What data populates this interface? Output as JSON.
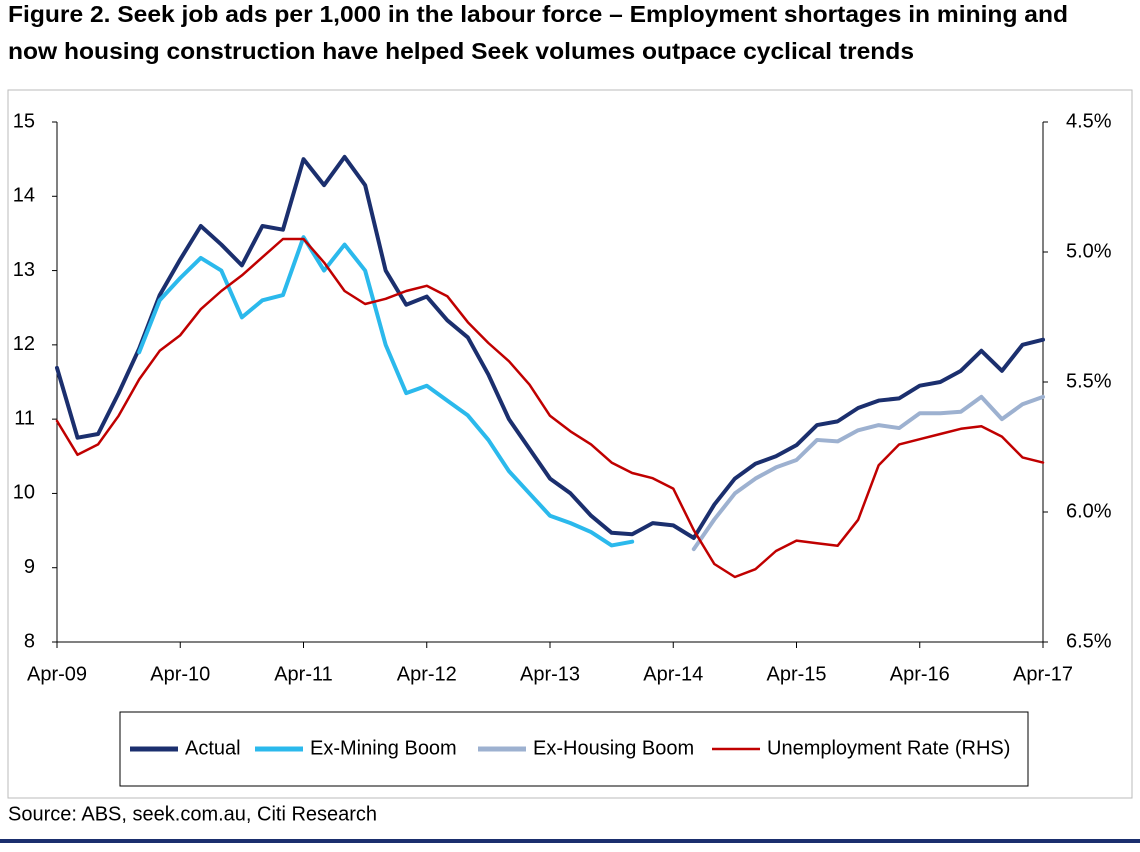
{
  "chart_data": {
    "type": "line",
    "title": [
      "Figure 2. Seek job ads per 1,000 in the labour force – Employment shortages in mining and",
      "now housing construction have helped Seek volumes outpace cyclical trends"
    ],
    "source": "Source: ABS, seek.com.au, Citi Research",
    "x": [
      "2009-04",
      "2009-06",
      "2009-08",
      "2009-10",
      "2009-12",
      "2010-02",
      "2010-04",
      "2010-06",
      "2010-08",
      "2010-10",
      "2010-12",
      "2011-02",
      "2011-04",
      "2011-06",
      "2011-08",
      "2011-10",
      "2011-12",
      "2012-02",
      "2012-04",
      "2012-06",
      "2012-08",
      "2012-10",
      "2012-12",
      "2013-02",
      "2013-04",
      "2013-06",
      "2013-08",
      "2013-10",
      "2013-12",
      "2014-02",
      "2014-04",
      "2014-06",
      "2014-08",
      "2014-10",
      "2014-12",
      "2015-02",
      "2015-04",
      "2015-06",
      "2015-08",
      "2015-10",
      "2015-12",
      "2016-02",
      "2016-04",
      "2016-06",
      "2016-08",
      "2016-10",
      "2016-12",
      "2017-02",
      "2017-04"
    ],
    "xlim": [
      "2009-04",
      "2017-04"
    ],
    "xticks": [
      {
        "value": "2009-04",
        "label": "Apr-09"
      },
      {
        "value": "2010-04",
        "label": "Apr-10"
      },
      {
        "value": "2011-04",
        "label": "Apr-11"
      },
      {
        "value": "2012-04",
        "label": "Apr-12"
      },
      {
        "value": "2013-04",
        "label": "Apr-13"
      },
      {
        "value": "2014-04",
        "label": "Apr-14"
      },
      {
        "value": "2015-04",
        "label": "Apr-15"
      },
      {
        "value": "2016-04",
        "label": "Apr-16"
      },
      {
        "value": "2017-04",
        "label": "Apr-17"
      }
    ],
    "ylim": [
      8,
      15
    ],
    "yticks": [
      8,
      9,
      10,
      11,
      12,
      13,
      14,
      15
    ],
    "y2lim": [
      6.5,
      4.5
    ],
    "y2ticks": [
      {
        "value": 4.5,
        "label": "4.5%"
      },
      {
        "value": 5.0,
        "label": "5.0%"
      },
      {
        "value": 5.5,
        "label": "5.5%"
      },
      {
        "value": 6.0,
        "label": "6.0%"
      },
      {
        "value": 6.5,
        "label": "6.5%"
      }
    ],
    "grid": false,
    "legend": "bottom",
    "series": [
      {
        "name": "Actual",
        "color": "#1b2f6e",
        "values": [
          11.69,
          10.75,
          10.8,
          11.35,
          11.95,
          12.67,
          13.15,
          13.6,
          13.35,
          13.07,
          13.6,
          13.55,
          14.5,
          14.15,
          14.53,
          14.15,
          13.0,
          12.54,
          12.65,
          12.33,
          12.1,
          11.6,
          11.0,
          10.6,
          10.2,
          10.0,
          9.7,
          9.47,
          9.45,
          9.6,
          9.57,
          9.4,
          9.85,
          10.2,
          10.4,
          10.5,
          10.65,
          10.92,
          10.97,
          11.15,
          11.25,
          11.28,
          11.45,
          11.5,
          11.65,
          11.92,
          11.65,
          12.0,
          12.07
        ]
      },
      {
        "name": "Ex-Mining Boom",
        "color": "#2bb9ec",
        "values": [
          null,
          null,
          null,
          null,
          11.9,
          12.6,
          12.9,
          13.17,
          13.0,
          12.37,
          12.6,
          12.67,
          13.45,
          13.0,
          13.35,
          13.0,
          12.0,
          11.35,
          11.45,
          11.25,
          11.05,
          10.72,
          10.3,
          10.0,
          9.7,
          9.6,
          9.48,
          9.3,
          9.35,
          null,
          null,
          null,
          null,
          null,
          null,
          null,
          null,
          null,
          null,
          null,
          null,
          null,
          null,
          null,
          null,
          null,
          null,
          null,
          null
        ]
      },
      {
        "name": "Ex-Housing Boom",
        "color": "#9db1d0",
        "values": [
          null,
          null,
          null,
          null,
          null,
          null,
          null,
          null,
          null,
          null,
          null,
          null,
          null,
          null,
          null,
          null,
          null,
          null,
          null,
          null,
          null,
          null,
          null,
          null,
          null,
          null,
          null,
          null,
          null,
          null,
          null,
          9.25,
          9.65,
          10.0,
          10.2,
          10.35,
          10.45,
          10.72,
          10.7,
          10.85,
          10.92,
          10.88,
          11.08,
          11.08,
          11.1,
          11.3,
          11.0,
          11.2,
          11.3
        ]
      },
      {
        "name": "Unemployment Rate (RHS)",
        "color": "#c00000",
        "axis": "y2",
        "values": [
          5.65,
          5.78,
          5.74,
          5.63,
          5.49,
          5.38,
          5.32,
          5.22,
          5.15,
          5.09,
          5.02,
          4.95,
          4.95,
          5.04,
          5.15,
          5.2,
          5.18,
          5.15,
          5.13,
          5.17,
          5.27,
          5.35,
          5.42,
          5.51,
          5.63,
          5.69,
          5.74,
          5.81,
          5.85,
          5.87,
          5.91,
          6.07,
          6.2,
          6.25,
          6.22,
          6.15,
          6.11,
          6.12,
          6.13,
          6.03,
          5.82,
          5.74,
          5.72,
          5.7,
          5.68,
          5.67,
          5.71,
          5.79,
          5.81
        ]
      }
    ]
  }
}
